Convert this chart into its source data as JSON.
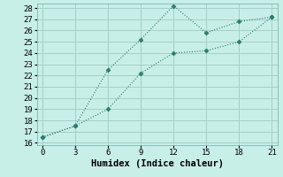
{
  "xlabel": "Humidex (Indice chaleur)",
  "line1_x": [
    0,
    3,
    6,
    9,
    12,
    15,
    18,
    21
  ],
  "line1_y": [
    16.5,
    17.5,
    22.5,
    25.2,
    28.2,
    25.8,
    26.8,
    27.2
  ],
  "line2_x": [
    0,
    3,
    6,
    9,
    12,
    15,
    18,
    21
  ],
  "line2_y": [
    16.5,
    17.5,
    19.0,
    22.2,
    24.0,
    24.2,
    25.0,
    27.2
  ],
  "line_color": "#2a7d6b",
  "bg_color": "#c8eee8",
  "grid_color": "#a8cec8",
  "xlim": [
    -0.5,
    21.5
  ],
  "ylim": [
    15.8,
    28.4
  ],
  "xticks": [
    0,
    3,
    6,
    9,
    12,
    15,
    18,
    21
  ],
  "yticks": [
    16,
    17,
    18,
    19,
    20,
    21,
    22,
    23,
    24,
    25,
    26,
    27,
    28
  ],
  "xlabel_fontsize": 7.5,
  "tick_fontsize": 6.5
}
